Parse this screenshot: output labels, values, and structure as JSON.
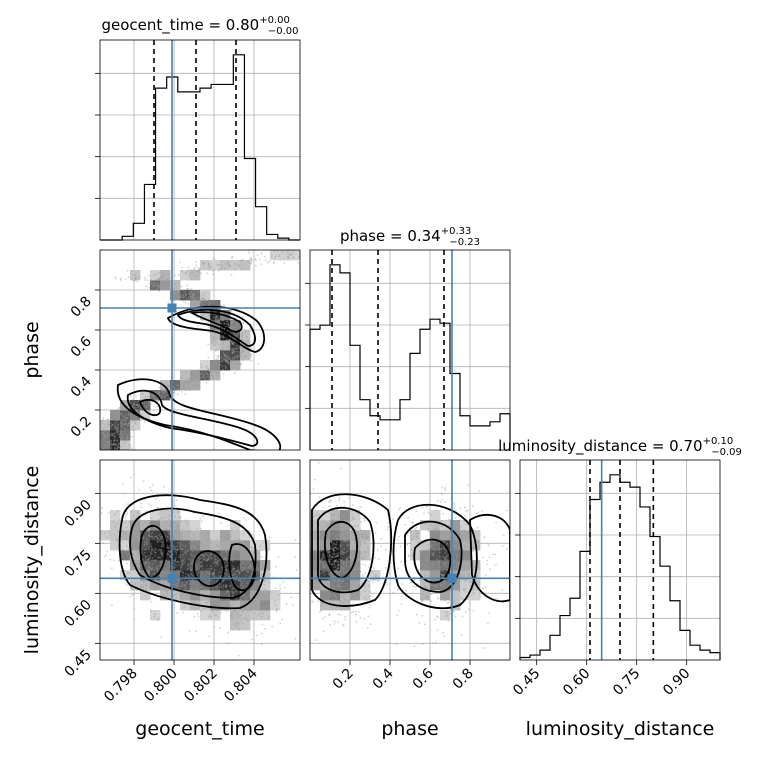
{
  "chart_data": {
    "type": "corner",
    "parameters": [
      "geocent_time",
      "phase",
      "luminosity_distance"
    ],
    "axis_labels": [
      "geocent_time",
      "phase",
      "luminosity_distance"
    ],
    "titles": [
      {
        "name": "geocent_time = 0.80",
        "plus": "+0.00",
        "minus": "−0.00"
      },
      {
        "name": "phase = 0.34",
        "plus": "+0.33",
        "minus": "−0.23"
      },
      {
        "name": "luminosity_distance = 0.70",
        "plus": "+0.10",
        "minus": "−0.09"
      }
    ],
    "ranges": [
      [
        0.7963,
        0.8063
      ],
      [
        0.0,
        1.0
      ],
      [
        0.4,
        1.0
      ]
    ],
    "ticks": [
      {
        "values": [
          0.798,
          0.8,
          0.802,
          0.804
        ],
        "labels": [
          "0.798",
          "0.800",
          "0.802",
          "0.804"
        ]
      },
      {
        "values": [
          0.2,
          0.4,
          0.6,
          0.8
        ],
        "labels": [
          "0.2",
          "0.4",
          "0.6",
          "0.8"
        ]
      },
      {
        "values": [
          0.45,
          0.6,
          0.75,
          0.9
        ],
        "labels": [
          "0.45",
          "0.60",
          "0.75",
          "0.90"
        ]
      }
    ],
    "truths": [
      0.7999,
      0.71,
      0.645
    ],
    "quantiles": [
      [
        0.799,
        0.8011,
        0.8031
      ],
      [
        0.11,
        0.34,
        0.67
      ],
      [
        0.61,
        0.7,
        0.8
      ]
    ],
    "histograms": [
      {
        "counts": [
          0,
          0,
          2,
          9,
          30,
          82,
          88,
          80,
          80,
          82,
          84,
          84,
          100,
          44,
          18,
          3,
          1,
          0
        ]
      },
      {
        "counts": [
          60,
          62,
          92,
          88,
          52,
          25,
          17,
          15,
          15,
          25,
          48,
          60,
          65,
          63,
          38,
          17,
          12,
          12,
          14,
          18
        ]
      },
      {
        "counts": [
          1,
          2,
          4,
          10,
          18,
          25,
          44,
          65,
          72,
          75,
          72,
          70,
          62,
          50,
          38,
          24,
          12,
          6,
          4,
          3
        ]
      }
    ],
    "grid": true
  }
}
